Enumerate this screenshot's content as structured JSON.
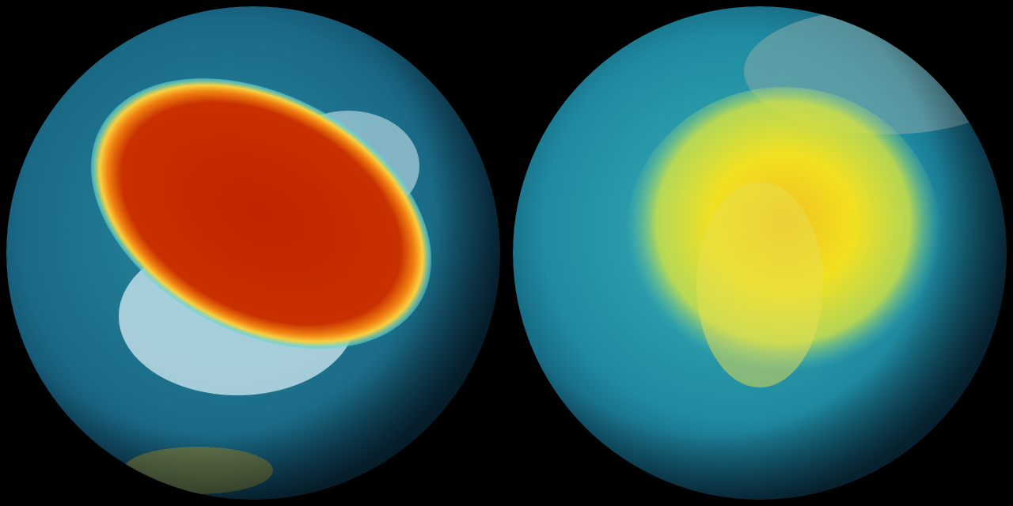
{
  "colors": {
    "background": "#000000",
    "ocean": "#1a6a86",
    "ocean_dark": "#0d3f5c",
    "vortex_core": "#c42a00",
    "vortex_edge": "#f5a020",
    "vortex_rim": "#4fd6e0",
    "ice": "#c8e4ec",
    "land": "#6b7a4a",
    "yellow_core": "#f2e020",
    "yellow_edge": "#d8e640"
  },
  "globes": [
    {
      "view": "southern-hemisphere"
    },
    {
      "view": "northern-hemisphere"
    }
  ]
}
